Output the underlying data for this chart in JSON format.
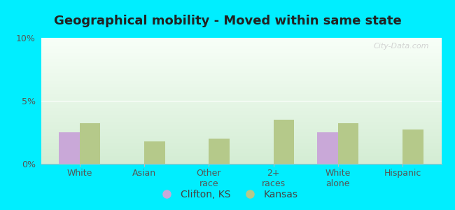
{
  "title": "Geographical mobility - Moved within same state",
  "categories": [
    "White",
    "Asian",
    "Other\nrace",
    "2+\nraces",
    "White\nalone",
    "Hispanic"
  ],
  "clifton_values": [
    2.5,
    0.0,
    0.0,
    0.0,
    2.5,
    0.0
  ],
  "kansas_values": [
    3.2,
    1.8,
    2.0,
    3.5,
    3.2,
    2.7
  ],
  "clifton_color": "#c9a8d8",
  "kansas_color": "#b5c98a",
  "background_color": "#00eeff",
  "plot_bg_color": "#e8f5e8",
  "ylim": [
    0,
    10
  ],
  "yticks": [
    0,
    5,
    10
  ],
  "ytick_labels": [
    "0%",
    "5%",
    "10%"
  ],
  "bar_width": 0.32,
  "legend_clifton": "Clifton, KS",
  "legend_kansas": "Kansas",
  "title_fontsize": 13,
  "tick_fontsize": 9,
  "legend_fontsize": 10
}
